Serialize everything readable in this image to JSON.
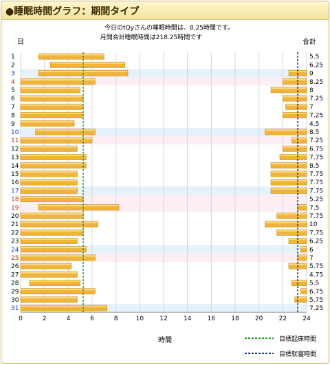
{
  "window": {
    "title": "●睡眠時間グラフ：期間タイプ"
  },
  "summary": {
    "line1": "今日のtQyさんの睡眠時間は、8.25時間です。",
    "line2": "月間合計睡眠時間は218.25時間です"
  },
  "legend": {
    "wake": {
      "label": "目標起床時間",
      "color": "#1f9a1f"
    },
    "bed": {
      "label": "目標就寝時間",
      "color": "#1a3a8a"
    }
  },
  "colors": {
    "bar": "#f0b43c",
    "saturday_band": "#e6f2fb",
    "sunday_band": "#fdeef4",
    "saturday_text": "#1a3fd0",
    "sunday_text": "#c03010"
  },
  "chart_data": {
    "type": "bar",
    "orientation": "horizontal",
    "xlabel": "時間",
    "ylabel": "日",
    "total_label": "合計",
    "xlim": [
      0,
      24
    ],
    "xticks": [
      0,
      2,
      4,
      6,
      8,
      10,
      12,
      14,
      16,
      18,
      20,
      22,
      24
    ],
    "target_wake": 5.25,
    "target_bed": 23.25,
    "days": [
      {
        "day": "1",
        "total": "5.5",
        "segments": [
          [
            1.5,
            7.0
          ]
        ],
        "weekday": ""
      },
      {
        "day": "2",
        "total": "6.25",
        "segments": [
          [
            2.5,
            8.75
          ]
        ],
        "weekday": ""
      },
      {
        "day": "3",
        "total": "9",
        "segments": [
          [
            1.5,
            9.0
          ],
          [
            22.5,
            24
          ]
        ],
        "weekday": "sat"
      },
      {
        "day": "4",
        "total": "8.25",
        "segments": [
          [
            0,
            6.25
          ],
          [
            22.0,
            24
          ]
        ],
        "weekday": "sun"
      },
      {
        "day": "5",
        "total": "8",
        "segments": [
          [
            0,
            5.0
          ],
          [
            21.0,
            24
          ]
        ],
        "weekday": ""
      },
      {
        "day": "6",
        "total": "7.25",
        "segments": [
          [
            0,
            5.25
          ],
          [
            22.0,
            24
          ]
        ],
        "weekday": ""
      },
      {
        "day": "7",
        "total": "7",
        "segments": [
          [
            0,
            5.25
          ],
          [
            22.25,
            24
          ]
        ],
        "weekday": ""
      },
      {
        "day": "8",
        "total": "7.25",
        "segments": [
          [
            0,
            5.25
          ],
          [
            22.0,
            24
          ]
        ],
        "weekday": ""
      },
      {
        "day": "9",
        "total": "4.5",
        "segments": [
          [
            0,
            4.5
          ]
        ],
        "weekday": ""
      },
      {
        "day": "10",
        "total": "8.5",
        "segments": [
          [
            1.25,
            6.25
          ],
          [
            20.5,
            24
          ]
        ],
        "weekday": "sat"
      },
      {
        "day": "11",
        "total": "7.25",
        "segments": [
          [
            0,
            6.0
          ],
          [
            22.75,
            24
          ]
        ],
        "weekday": "sun"
      },
      {
        "day": "12",
        "total": "6.75",
        "segments": [
          [
            0,
            4.75
          ],
          [
            22.0,
            24
          ]
        ],
        "weekday": ""
      },
      {
        "day": "13",
        "total": "7.75",
        "segments": [
          [
            0,
            5.5
          ],
          [
            21.75,
            24
          ]
        ],
        "weekday": ""
      },
      {
        "day": "14",
        "total": "8.5",
        "segments": [
          [
            0,
            5.5
          ],
          [
            21.0,
            24
          ]
        ],
        "weekday": ""
      },
      {
        "day": "15",
        "total": "7.75",
        "segments": [
          [
            0,
            4.75
          ],
          [
            21.0,
            24
          ]
        ],
        "weekday": ""
      },
      {
        "day": "16",
        "total": "7.75",
        "segments": [
          [
            0,
            4.75
          ],
          [
            21.0,
            24
          ]
        ],
        "weekday": ""
      },
      {
        "day": "17",
        "total": "7.75",
        "segments": [
          [
            0,
            4.75
          ],
          [
            21.0,
            24
          ]
        ],
        "weekday": "sat"
      },
      {
        "day": "18",
        "total": "5.25",
        "segments": [
          [
            0,
            5.25
          ]
        ],
        "weekday": "sun"
      },
      {
        "day": "19",
        "total": "7.5",
        "segments": [
          [
            1.5,
            8.25
          ],
          [
            23.25,
            24
          ]
        ],
        "weekday": "holiday"
      },
      {
        "day": "20",
        "total": "7.75",
        "segments": [
          [
            0,
            5.25
          ],
          [
            21.5,
            24
          ]
        ],
        "weekday": ""
      },
      {
        "day": "21",
        "total": "10",
        "segments": [
          [
            0,
            6.5
          ],
          [
            20.5,
            24
          ]
        ],
        "weekday": ""
      },
      {
        "day": "22",
        "total": "7.75",
        "segments": [
          [
            0,
            5.25
          ],
          [
            21.5,
            24
          ]
        ],
        "weekday": ""
      },
      {
        "day": "23",
        "total": "6.25",
        "segments": [
          [
            0,
            4.75
          ],
          [
            22.5,
            24
          ]
        ],
        "weekday": ""
      },
      {
        "day": "24",
        "total": "6",
        "segments": [
          [
            0,
            5.5
          ],
          [
            23.5,
            24
          ]
        ],
        "weekday": "sat"
      },
      {
        "day": "25",
        "total": "7",
        "segments": [
          [
            0,
            6.25
          ],
          [
            23.25,
            24
          ]
        ],
        "weekday": "sun"
      },
      {
        "day": "26",
        "total": "5.75",
        "segments": [
          [
            0,
            4.25
          ],
          [
            22.5,
            24
          ]
        ],
        "weekday": ""
      },
      {
        "day": "27",
        "total": "4.75",
        "segments": [
          [
            0,
            4.75
          ]
        ],
        "weekday": ""
      },
      {
        "day": "28",
        "total": "5.5",
        "segments": [
          [
            0.75,
            5.0
          ],
          [
            22.75,
            24
          ]
        ],
        "weekday": ""
      },
      {
        "day": "29",
        "total": "6.75",
        "segments": [
          [
            0,
            6.25
          ],
          [
            23.5,
            24
          ]
        ],
        "weekday": ""
      },
      {
        "day": "30",
        "total": "5.75",
        "segments": [
          [
            0,
            4.75
          ],
          [
            23.0,
            24
          ]
        ],
        "weekday": ""
      },
      {
        "day": "31",
        "total": "7.25",
        "segments": [
          [
            0,
            7.25
          ]
        ],
        "weekday": "sat"
      }
    ]
  }
}
